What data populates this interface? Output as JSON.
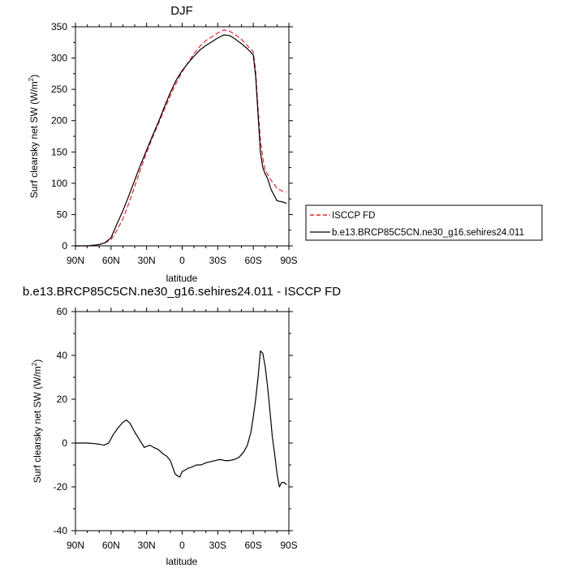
{
  "chart_data": [
    {
      "type": "line",
      "title": "DJF",
      "xlabel": "latitude",
      "ylabel_main": "Surf clearsky net SW (W/m",
      "ylabel_sup": "2",
      "ylabel_end": ")",
      "xlim": [
        90,
        -90
      ],
      "ylim": [
        0,
        350
      ],
      "x_ticks": [
        90,
        60,
        30,
        0,
        -30,
        -60,
        -90
      ],
      "x_tick_labels": [
        "90N",
        "60N",
        "30N",
        "0",
        "30S",
        "60S",
        "90S"
      ],
      "y_ticks": [
        0,
        50,
        100,
        150,
        200,
        250,
        300,
        350
      ],
      "y_tick_labels": [
        "0",
        "50",
        "100",
        "150",
        "200",
        "250",
        "300",
        "350"
      ],
      "legend_position": "right",
      "series": [
        {
          "name": "ISCCP FD",
          "color": "#e8242b",
          "dash": true,
          "x": [
            90,
            85,
            80,
            75,
            70,
            65,
            60,
            55,
            50,
            45,
            40,
            35,
            30,
            25,
            20,
            15,
            10,
            5,
            0,
            -5,
            -10,
            -15,
            -20,
            -25,
            -30,
            -35,
            -40,
            -45,
            -50,
            -55,
            -60,
            -62,
            -64,
            -66,
            -68,
            -70,
            -72,
            -75,
            -80,
            -85,
            -88
          ],
          "y": [
            0,
            0,
            0,
            1,
            2,
            5,
            10,
            25,
            43,
            68,
            95,
            123,
            149,
            173,
            195,
            218,
            240,
            260,
            278,
            293,
            307,
            319,
            328,
            334,
            340,
            345,
            343,
            337,
            330,
            320,
            310,
            280,
            220,
            170,
            140,
            120,
            115,
            105,
            92,
            87,
            86
          ]
        },
        {
          "name": "b.e13.BRCP85C5CN.ne30_g16.sehires24.011",
          "color": "#000000",
          "dash": false,
          "x": [
            90,
            85,
            80,
            75,
            70,
            65,
            60,
            55,
            50,
            45,
            40,
            35,
            30,
            25,
            20,
            15,
            10,
            5,
            0,
            -5,
            -10,
            -15,
            -20,
            -25,
            -30,
            -35,
            -40,
            -45,
            -50,
            -55,
            -60,
            -62,
            -64,
            -66,
            -68,
            -70,
            -72,
            -75,
            -80,
            -85,
            -88
          ],
          "y": [
            0,
            0,
            0,
            1,
            2,
            5,
            13,
            35,
            56,
            80,
            105,
            130,
            153,
            176,
            198,
            222,
            245,
            265,
            280,
            292,
            303,
            313,
            320,
            326,
            332,
            337,
            336,
            330,
            323,
            315,
            305,
            270,
            210,
            150,
            125,
            115,
            108,
            90,
            72,
            70,
            68
          ]
        }
      ]
    },
    {
      "type": "line",
      "title": "b.e13.BRCP85C5CN.ne30_g16.sehires24.011 - ISCCP FD",
      "xlabel": "latitude",
      "ylabel_main": "Surf clearsky net SW (W/m",
      "ylabel_sup": "2",
      "ylabel_end": ")",
      "xlim": [
        90,
        -90
      ],
      "ylim": [
        -40,
        60
      ],
      "x_ticks": [
        90,
        60,
        30,
        0,
        -30,
        -60,
        -90
      ],
      "x_tick_labels": [
        "90N",
        "60N",
        "30N",
        "0",
        "30S",
        "60S",
        "90S"
      ],
      "y_ticks": [
        -40,
        -20,
        0,
        20,
        40,
        60
      ],
      "y_tick_labels": [
        "-40",
        "-20",
        "0",
        "20",
        "40",
        "60"
      ],
      "series": [
        {
          "color": "#000000",
          "dash": false,
          "x": [
            90,
            85,
            80,
            75,
            70,
            66,
            62,
            58,
            54,
            50,
            47,
            44,
            40,
            36,
            32,
            30,
            27,
            24,
            20,
            16,
            13,
            10,
            8,
            6,
            4,
            2,
            0,
            -2,
            -5,
            -8,
            -12,
            -16,
            -20,
            -24,
            -28,
            -32,
            -36,
            -40,
            -44,
            -48,
            -52,
            -55,
            -58,
            -60,
            -62,
            -64,
            -66,
            -68,
            -70,
            -72,
            -74,
            -76,
            -78,
            -80,
            -82,
            -84,
            -86,
            -88
          ],
          "y": [
            0,
            0,
            0,
            -0.2,
            -0.5,
            -1,
            0,
            4,
            7,
            9.5,
            10.5,
            9,
            5,
            1.5,
            -2,
            -1.5,
            -1,
            -2,
            -3,
            -5,
            -6,
            -8,
            -11,
            -14,
            -15,
            -15.5,
            -13,
            -12.5,
            -11.5,
            -11,
            -10,
            -10,
            -9,
            -8.5,
            -8,
            -7.5,
            -8,
            -8,
            -7.5,
            -6.5,
            -4,
            -1,
            5,
            12,
            20,
            30,
            42,
            41,
            35,
            26,
            15,
            3,
            -5,
            -14,
            -20,
            -18,
            -18,
            -19
          ]
        }
      ]
    }
  ]
}
